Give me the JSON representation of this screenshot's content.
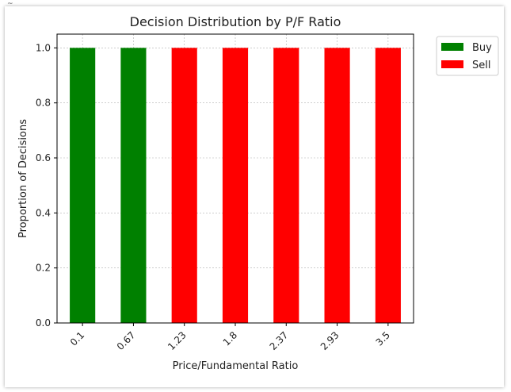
{
  "chart_data": {
    "type": "bar",
    "title": "Decision Distribution by P/F Ratio",
    "xlabel": "Price/Fundamental Ratio",
    "ylabel": "Proportion of Decisions",
    "categories": [
      "0.1",
      "0.67",
      "1.23",
      "1.8",
      "2.37",
      "2.93",
      "3.5"
    ],
    "series": [
      {
        "name": "Buy",
        "color": "#008000",
        "values": [
          1.0,
          1.0,
          0.0,
          0.0,
          0.0,
          0.0,
          0.0
        ]
      },
      {
        "name": "Sell",
        "color": "#ff0000",
        "values": [
          0.0,
          0.0,
          1.0,
          1.0,
          1.0,
          1.0,
          1.0
        ]
      }
    ],
    "stacked": true,
    "ylim": [
      0,
      1.05
    ],
    "yticks": [
      "0.0",
      "0.2",
      "0.4",
      "0.6",
      "0.8",
      "1.0"
    ],
    "grid": true,
    "legend": "outside-top-right"
  }
}
